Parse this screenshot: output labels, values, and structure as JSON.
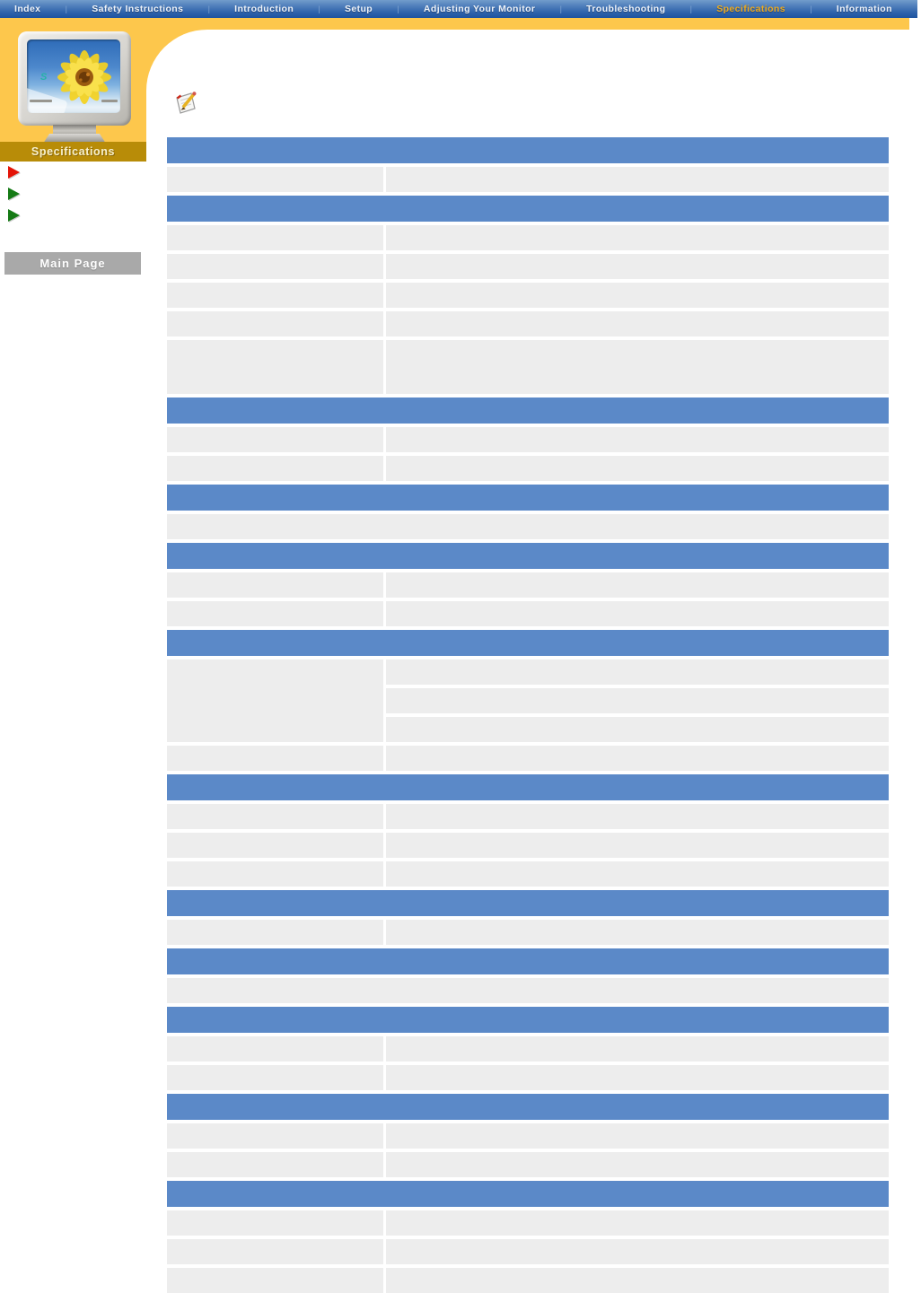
{
  "nav": {
    "separator": "|",
    "items": [
      {
        "id": "index",
        "label": "Index",
        "active": false
      },
      {
        "id": "safety-instructions",
        "label": "Safety Instructions",
        "active": false
      },
      {
        "id": "introduction",
        "label": "Introduction",
        "active": false
      },
      {
        "id": "setup",
        "label": "Setup",
        "active": false
      },
      {
        "id": "adjusting-your-monitor",
        "label": "Adjusting Your Monitor",
        "active": false
      },
      {
        "id": "troubleshooting",
        "label": "Troubleshooting",
        "active": false
      },
      {
        "id": "specifications",
        "label": "Specifications",
        "active": true
      },
      {
        "id": "information",
        "label": "Information",
        "active": false
      }
    ]
  },
  "sidebar": {
    "section_label": "Specifications",
    "monitor_screen_letter": "S",
    "menu_bullets": [
      {
        "color": "#e41408",
        "label": ""
      },
      {
        "color": "#157a15",
        "label": ""
      },
      {
        "color": "#157a15",
        "label": ""
      }
    ],
    "main_page_label": "Main Page"
  },
  "content": {
    "table": {
      "rows": [
        {
          "type": "header",
          "text": ""
        },
        {
          "type": "split",
          "label": "",
          "value": ""
        },
        {
          "type": "header",
          "text": ""
        },
        {
          "type": "split",
          "label": "",
          "value": ""
        },
        {
          "type": "split",
          "label": "",
          "value": ""
        },
        {
          "type": "split",
          "label": "",
          "value": ""
        },
        {
          "type": "split",
          "label": "",
          "value": ""
        },
        {
          "type": "split_tall",
          "label": "",
          "value": ""
        },
        {
          "type": "header",
          "text": ""
        },
        {
          "type": "split",
          "label": "",
          "value": ""
        },
        {
          "type": "split",
          "label": "",
          "value": ""
        },
        {
          "type": "header",
          "text": ""
        },
        {
          "type": "full",
          "text": ""
        },
        {
          "type": "header",
          "text": ""
        },
        {
          "type": "split",
          "label": "",
          "value": ""
        },
        {
          "type": "split",
          "label": "",
          "value": ""
        },
        {
          "type": "header",
          "text": ""
        },
        {
          "type": "multi",
          "label": "",
          "values": [
            "",
            "",
            ""
          ]
        },
        {
          "type": "split",
          "label": "",
          "value": ""
        },
        {
          "type": "header",
          "text": ""
        },
        {
          "type": "split",
          "label": "",
          "value": ""
        },
        {
          "type": "split",
          "label": "",
          "value": ""
        },
        {
          "type": "split",
          "label": "",
          "value": ""
        },
        {
          "type": "header",
          "text": ""
        },
        {
          "type": "split",
          "label": "",
          "value": ""
        },
        {
          "type": "header",
          "text": ""
        },
        {
          "type": "full",
          "text": ""
        },
        {
          "type": "header",
          "text": ""
        },
        {
          "type": "split",
          "label": "",
          "value": ""
        },
        {
          "type": "split",
          "label": "",
          "value": ""
        },
        {
          "type": "header",
          "text": ""
        },
        {
          "type": "split",
          "label": "",
          "value": ""
        },
        {
          "type": "split",
          "label": "",
          "value": ""
        },
        {
          "type": "header",
          "text": ""
        },
        {
          "type": "split",
          "label": "",
          "value": ""
        },
        {
          "type": "split",
          "label": "",
          "value": ""
        },
        {
          "type": "split",
          "label": "",
          "value": ""
        }
      ]
    }
  },
  "colors": {
    "nav_gradient_top": "#729ccb",
    "nav_gradient_bottom": "#1d53a0",
    "nav_active_text": "#edaa1f",
    "accent_yellow": "#fdc74c",
    "section_band_gold": "#b88c08",
    "table_header_blue": "#5b89c8",
    "table_cell_gray": "#ededed",
    "main_page_button_gray": "#a9a9a9",
    "bullet_red": "#e41408",
    "bullet_green": "#157a15"
  }
}
